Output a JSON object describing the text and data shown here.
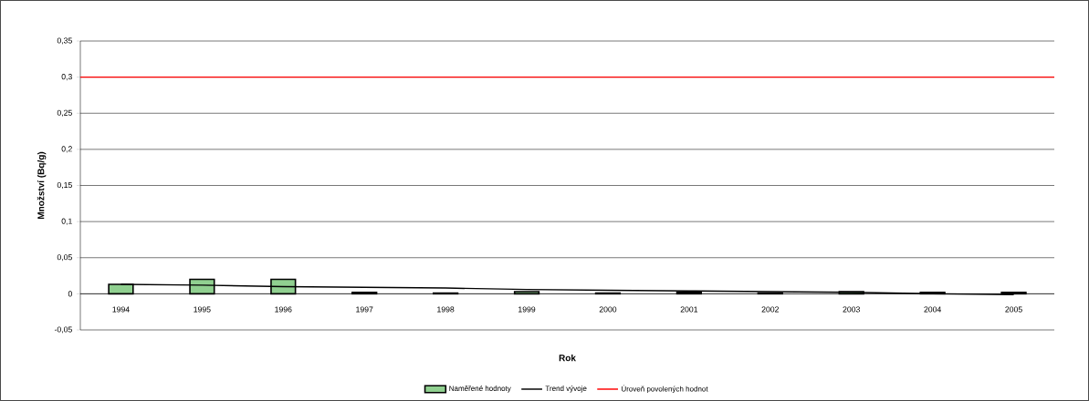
{
  "chart_data": {
    "type": "bar",
    "xlabel": "Rok",
    "ylabel": "Množství (Bq/g)",
    "categories": [
      "1994",
      "1995",
      "1996",
      "1997",
      "1998",
      "1999",
      "2000",
      "2001",
      "2002",
      "2003",
      "2004",
      "2005"
    ],
    "series": [
      {
        "name": "Naměřené hodnoty",
        "color": "#90d090",
        "values": [
          0.013,
          0.02,
          0.02,
          0.002,
          0.001,
          0.003,
          0.001,
          0.002,
          0.001,
          0.003,
          0.002,
          0.002
        ]
      },
      {
        "name": "Trend vývoje",
        "type": "line",
        "color": "#000000",
        "values": [
          0.013,
          0.012,
          0.01,
          0.009,
          0.008,
          0.006,
          0.005,
          0.004,
          0.003,
          0.002,
          0.0,
          -0.001
        ]
      }
    ],
    "ref_lines": [
      {
        "axis": "y",
        "value": 0.3,
        "label": "Úroveň povolených hodnot",
        "color": "#ff0000"
      }
    ],
    "ylim": [
      -0.05,
      0.35
    ],
    "yticks": [
      {
        "value": -0.05,
        "label": "-0,05"
      },
      {
        "value": 0,
        "label": "0"
      },
      {
        "value": 0.05,
        "label": "0,05"
      },
      {
        "value": 0.1,
        "label": "0,1"
      },
      {
        "value": 0.15,
        "label": "0,15"
      },
      {
        "value": 0.2,
        "label": "0,2"
      },
      {
        "value": 0.25,
        "label": "0,25"
      },
      {
        "value": 0.3,
        "label": "0,3"
      },
      {
        "value": 0.35,
        "label": "0,35"
      }
    ],
    "grid": "y",
    "legend": "bottom"
  }
}
